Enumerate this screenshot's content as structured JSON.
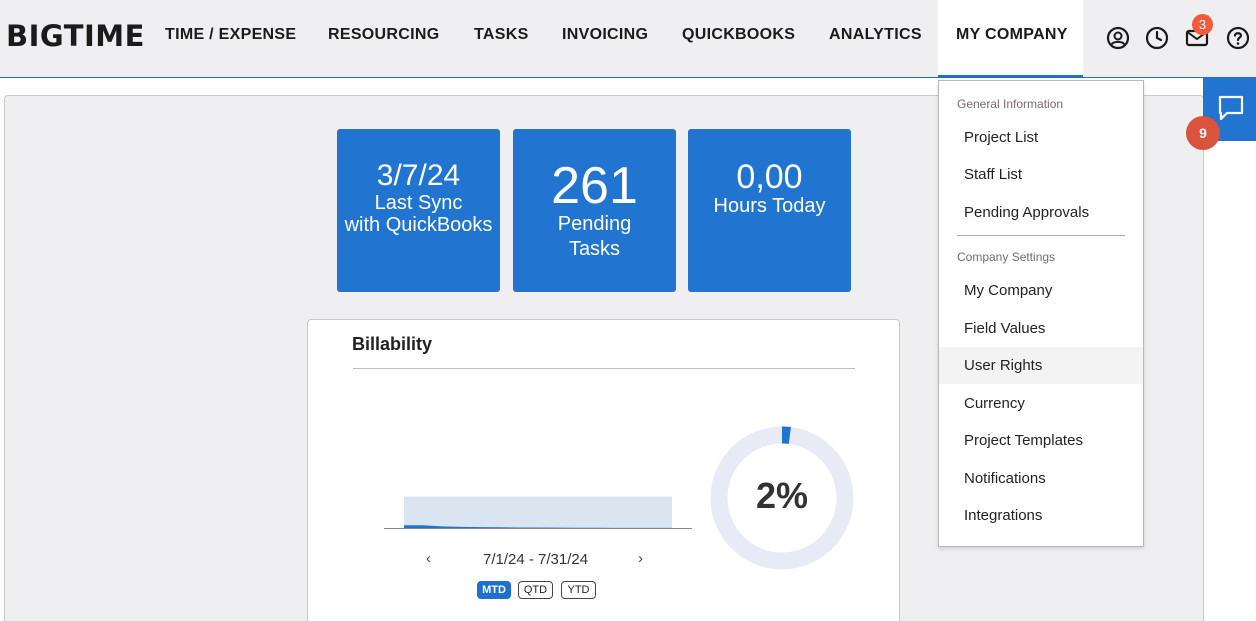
{
  "app": {
    "logo": "BIGTIME"
  },
  "nav": {
    "items": [
      {
        "label": "TIME / EXPENSE"
      },
      {
        "label": "RESOURCING"
      },
      {
        "label": "TASKS"
      },
      {
        "label": "INVOICING"
      },
      {
        "label": "QUICKBOOKS"
      },
      {
        "label": "ANALYTICS"
      },
      {
        "label": "MY COMPANY"
      }
    ],
    "active": "MY COMPANY",
    "icons": [
      "user-circle-icon",
      "clock-icon",
      "mail-icon",
      "help-icon"
    ],
    "mail_badge": "3",
    "accent_color": "#1f6fd1"
  },
  "tiles": [
    {
      "big": "3/7/24",
      "label1": "Last Sync",
      "label2": "with QuickBooks"
    },
    {
      "big": "261",
      "label1": "Pending",
      "label2": "Tasks"
    },
    {
      "big": "0,00",
      "label1": "Hours Today",
      "label2": ""
    }
  ],
  "billability": {
    "title": "Billability",
    "date_range": "7/1/24 - 7/31/24",
    "prev_arrow": "‹",
    "next_arrow": "›",
    "periods": [
      "MTD",
      "QTD",
      "YTD"
    ],
    "active_period": "MTD",
    "percent_label": "2%",
    "percent_value": 0.02
  },
  "chart_data": {
    "type": "area",
    "title": "",
    "xlabel": "",
    "ylabel": "",
    "series": [
      {
        "values": [
          3,
          3,
          1.8,
          1.2,
          1,
          0.8,
          0.6,
          0.5,
          0.4,
          0.3,
          0.3,
          0.2,
          0.2,
          0.2,
          0.2
        ]
      }
    ],
    "target": 35,
    "ylim": [
      0,
      40
    ],
    "grid": false
  },
  "dropdown": {
    "general_header": "General Information",
    "general_items": [
      {
        "label": "Project List"
      },
      {
        "label": "Staff List"
      },
      {
        "label": "Pending Approvals"
      }
    ],
    "settings_header": "Company Settings",
    "settings_items": [
      {
        "label": "My Company"
      },
      {
        "label": "Field Values"
      },
      {
        "label": "User Rights"
      },
      {
        "label": "Currency"
      },
      {
        "label": "Project Templates"
      },
      {
        "label": "Notifications"
      },
      {
        "label": "Integrations"
      }
    ],
    "hovered": "User Rights"
  },
  "chat": {
    "icon": "chat-icon",
    "badge": "9"
  }
}
